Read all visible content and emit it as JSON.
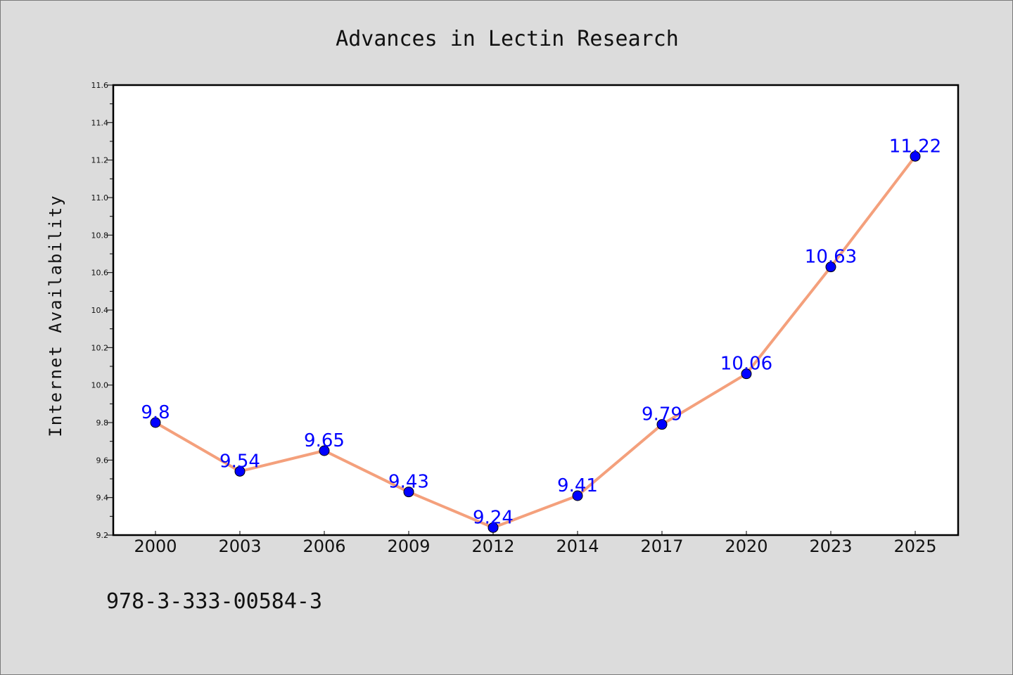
{
  "chart_data": {
    "type": "line",
    "title": "Advances in Lectin Research",
    "xlabel": "",
    "ylabel": "Internet Availability",
    "categories": [
      "2000",
      "2003",
      "2006",
      "2009",
      "2012",
      "2014",
      "2017",
      "2020",
      "2023",
      "2025"
    ],
    "series": [
      {
        "values": [
          9.8,
          9.54,
          9.65,
          9.43,
          9.24,
          9.41,
          9.79,
          10.06,
          10.63,
          11.22
        ],
        "labels": [
          "9.8",
          "9.54",
          "9.65",
          "9.43",
          "9.24",
          "9.41",
          "9.79",
          "10.06",
          "10.63",
          "11.22"
        ]
      }
    ],
    "ylim": [
      9.2,
      11.6
    ],
    "yticks": [
      "9.2",
      "9.4",
      "9.6",
      "9.8",
      "10.0",
      "10.2",
      "10.4",
      "10.6",
      "10.8",
      "11.0",
      "11.2",
      "11.4",
      "11.6"
    ],
    "grid": false,
    "line_color": "#f4a07c",
    "marker_color": "#0000ff",
    "label_color": "#0000ff",
    "background_color": "#dcdcdc",
    "plot_background_color": "#ffffff"
  },
  "footer": {
    "isbn": "978-3-333-00584-3"
  }
}
